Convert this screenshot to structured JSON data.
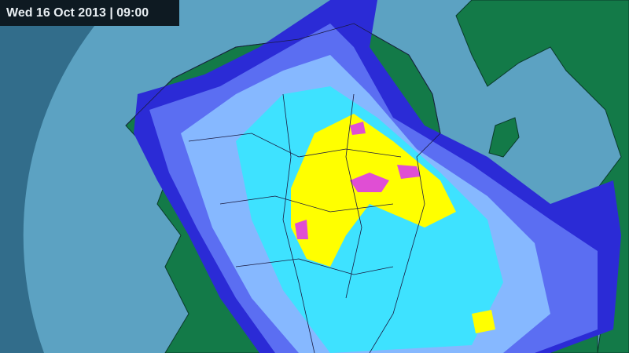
{
  "timestamp": "Wed 16 Oct 2013 | 09:00",
  "colors": {
    "outside_range": "#326d8b",
    "radar_range": "#5ca2c2",
    "land": "#137a48",
    "rain_very_light": "#2b2bd6",
    "rain_light": "#5b6ef2",
    "rain_moderate_low": "#86b8ff",
    "rain_moderate": "#3ee2ff",
    "rain_heavy": "#ffff00",
    "rain_very_heavy": "#e04ed4",
    "borders": "#1a1a40"
  }
}
